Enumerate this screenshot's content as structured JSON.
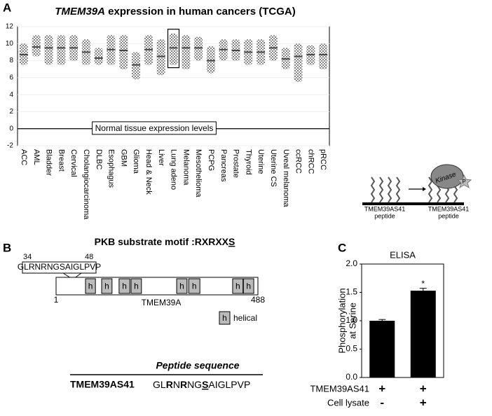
{
  "chart_data": [
    {
      "type": "strip",
      "panel": "A",
      "title": {
        "gene": "TMEM39A",
        "rest": " expression in human cancers (TCGA)"
      },
      "categories": [
        "ACC",
        "AML",
        "Bladder",
        "Breast",
        "Cervical",
        "Cholangiocarcinoma",
        "DLBC",
        "Esophagus",
        "GBM",
        "Glioma",
        "Head & Neck",
        "Liver",
        "Lung adeno",
        "Melanoma",
        "Mesothelioma",
        "PCPG",
        "Pancreas",
        "Prostate",
        "Thyroid",
        "Uterine",
        "Uterine CS",
        "Uveal melanoma",
        "ccRCC",
        "chRCC",
        "pRCC"
      ],
      "values": [
        8.7,
        9.6,
        9.5,
        9.5,
        9.5,
        9,
        8.3,
        9.3,
        9.2,
        7.5,
        9.3,
        8.5,
        9.5,
        9.5,
        9.5,
        8,
        9.3,
        9.2,
        9,
        9,
        9.5,
        8.2,
        8.5,
        8.7,
        8.7
      ],
      "ranges": [
        [
          7.5,
          10
        ],
        [
          8.5,
          11
        ],
        [
          7.5,
          11
        ],
        [
          7.5,
          11
        ],
        [
          8,
          11
        ],
        [
          7.5,
          10.5
        ],
        [
          7.5,
          9.5
        ],
        [
          7.5,
          11
        ],
        [
          7,
          11
        ],
        [
          5.8,
          9
        ],
        [
          7.5,
          11
        ],
        [
          6.3,
          10.5
        ],
        [
          7.5,
          11.2
        ],
        [
          7,
          11
        ],
        [
          8,
          10.8
        ],
        [
          6.5,
          9.7
        ],
        [
          8,
          10.5
        ],
        [
          8,
          10.5
        ],
        [
          7.5,
          10.5
        ],
        [
          7.5,
          10.5
        ],
        [
          8,
          11
        ],
        [
          7,
          9.5
        ],
        [
          5.5,
          10
        ],
        [
          7.5,
          9.8
        ],
        [
          7,
          10
        ]
      ],
      "color": "#7a7a7a",
      "ylim": [
        -2,
        12
      ],
      "yticks": [
        -2,
        0,
        2,
        4,
        6,
        8,
        10,
        12
      ],
      "grid": true,
      "reference_line": {
        "value": 0,
        "label": "Normal tissue expression levels"
      },
      "highlight_category": 12
    },
    {
      "type": "bar",
      "panel": "C",
      "title": "ELISA",
      "ylabel": [
        "Phosphorylation",
        "at Serine"
      ],
      "categories": [
        null,
        null
      ],
      "values": [
        1.0,
        1.53
      ],
      "errors": [
        0.01,
        0.03
      ],
      "color": "#000000",
      "annotations": [
        null,
        "*"
      ],
      "ylim": [
        0,
        2
      ],
      "yticks": [
        {
          "value": 0,
          "label": "0.0"
        },
        {
          "value": 0.5,
          "label": "0.5"
        },
        {
          "value": 1,
          "label": "1.0"
        },
        {
          "value": 1.5,
          "label": "1.5"
        },
        {
          "value": 2,
          "label": "2.0"
        }
      ],
      "conditions": [
        {
          "label": "TMEM39AS41",
          "marks": [
            "+",
            "+"
          ]
        },
        {
          "label": "Cell lysate",
          "marks": [
            "-",
            "+"
          ]
        }
      ]
    }
  ],
  "panel_labels": [
    "A",
    "B",
    "C"
  ],
  "panel_b": {
    "title": {
      "text": "PKB substrate motif :",
      "motif": "RXRXX",
      "site": "S"
    },
    "protein": {
      "name": "TMEM39A",
      "start": 1,
      "end": 488,
      "start_label": "1",
      "end_label": "488",
      "helices": [
        [
          72,
          96
        ],
        [
          111,
          136
        ],
        [
          153,
          179
        ],
        [
          182,
          207
        ],
        [
          292,
          317
        ],
        [
          321,
          348
        ],
        [
          427,
          452
        ],
        [
          453,
          478
        ]
      ],
      "helix_label": "h"
    },
    "inset": {
      "from": 34,
      "to": 48,
      "from_label": "34",
      "to_label": "48",
      "sequence": "GLRNRNGSAIGLPVP"
    },
    "legend": {
      "symbol": "h",
      "label": "helical"
    },
    "peptide_table": {
      "header": "Peptide sequence",
      "name": "TMEM39AS41",
      "sequence_parts": [
        {
          "text": "GL"
        },
        {
          "text": "R",
          "bold": true
        },
        {
          "text": "N"
        },
        {
          "text": "R",
          "bold": true
        },
        {
          "text": "NG"
        },
        {
          "text": "S",
          "bold": true,
          "underline": true
        },
        {
          "text": "AIGLPVP"
        }
      ]
    }
  },
  "panel_c_diagram": {
    "peptide_labels": [
      [
        "TMEM39AS41",
        "peptide"
      ],
      [
        "TMEM39AS41",
        "peptide"
      ]
    ],
    "kinase": "Kinase",
    "phospho": "P"
  }
}
